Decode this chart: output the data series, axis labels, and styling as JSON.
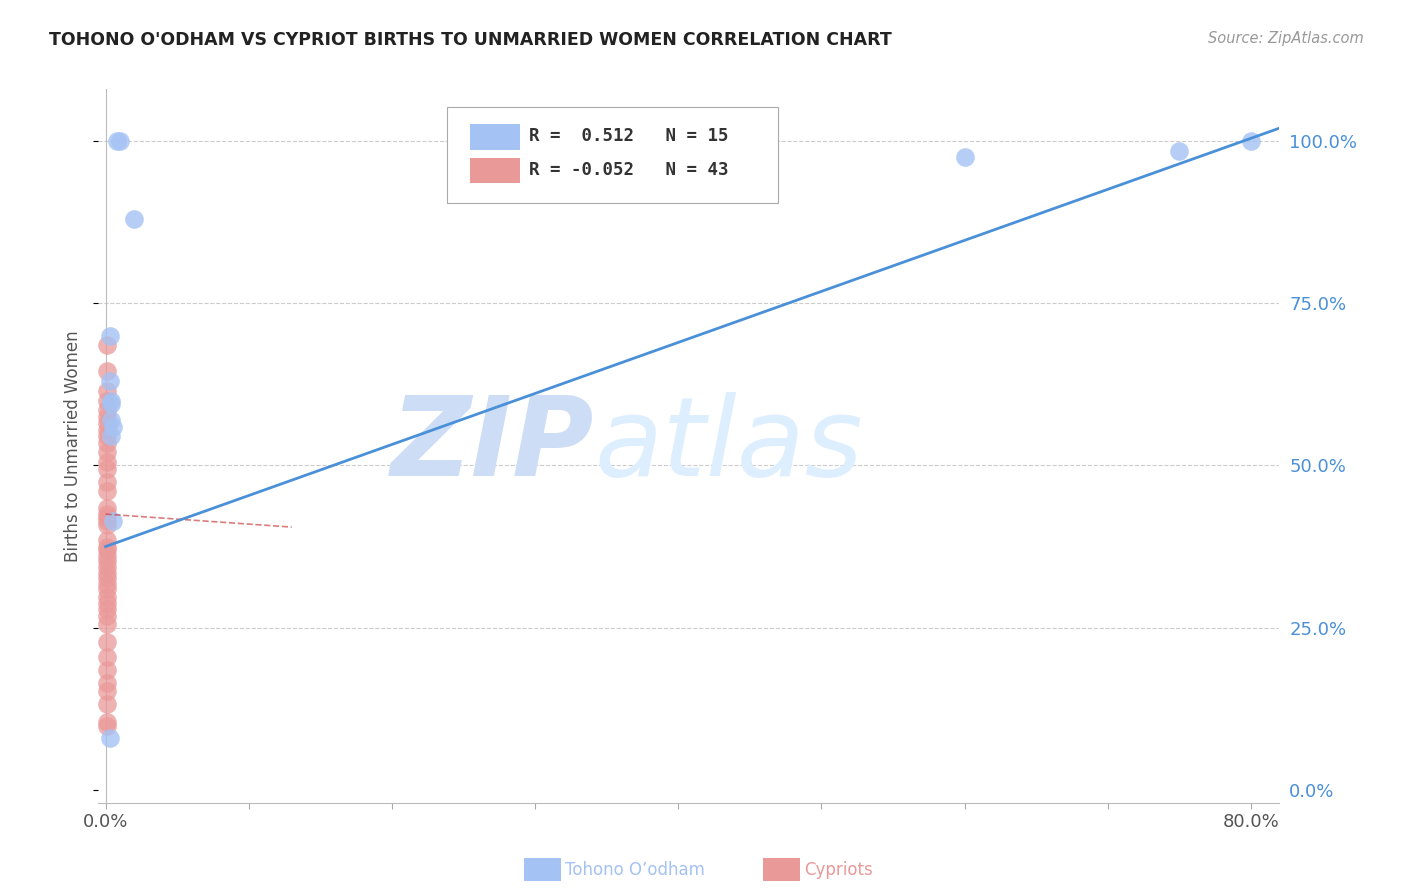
{
  "title": "TOHONO O'ODHAM VS CYPRIOT BIRTHS TO UNMARRIED WOMEN CORRELATION CHART",
  "source": "Source: ZipAtlas.com",
  "ylabel": "Births to Unmarried Women",
  "legend_blue_label": "Tohono O’odham",
  "legend_pink_label": "Cypriots",
  "legend_R_blue": "R =  0.512",
  "legend_N_blue": "N = 15",
  "legend_R_pink": "R = -0.052",
  "legend_N_pink": "N = 43",
  "blue_color": "#a4c2f4",
  "pink_color": "#ea9999",
  "trend_blue_color": "#4a90d9",
  "trend_pink_color": "#cc4444",
  "watermark_zip": "ZIP",
  "watermark_atlas": "atlas",
  "watermark_color": "#ddeeff",
  "background_color": "#ffffff",
  "blue_scatter_x": [
    0.008,
    0.01,
    0.02,
    0.003,
    0.003,
    0.004,
    0.004,
    0.004,
    0.005,
    0.004,
    0.005,
    0.003,
    0.6,
    0.75,
    0.8
  ],
  "blue_scatter_y": [
    1.0,
    1.0,
    0.88,
    0.7,
    0.63,
    0.6,
    0.595,
    0.57,
    0.56,
    0.545,
    0.415,
    0.08,
    0.975,
    0.985,
    1.0
  ],
  "pink_scatter_x": [
    0.001,
    0.001,
    0.001,
    0.001,
    0.001,
    0.001,
    0.001,
    0.001,
    0.001,
    0.001,
    0.001,
    0.001,
    0.001,
    0.001,
    0.001,
    0.001,
    0.001,
    0.001,
    0.001,
    0.001,
    0.001,
    0.001,
    0.001,
    0.001,
    0.001,
    0.001,
    0.001,
    0.001,
    0.001,
    0.001,
    0.001,
    0.001,
    0.001,
    0.001,
    0.001,
    0.001,
    0.001,
    0.001,
    0.001,
    0.001,
    0.001,
    0.001,
    0.001
  ],
  "pink_scatter_y": [
    0.685,
    0.645,
    0.615,
    0.6,
    0.585,
    0.575,
    0.565,
    0.555,
    0.545,
    0.535,
    0.52,
    0.505,
    0.495,
    0.475,
    0.46,
    0.435,
    0.425,
    0.42,
    0.415,
    0.408,
    0.385,
    0.375,
    0.37,
    0.36,
    0.352,
    0.343,
    0.334,
    0.326,
    0.318,
    0.31,
    0.298,
    0.288,
    0.278,
    0.268,
    0.255,
    0.228,
    0.205,
    0.185,
    0.165,
    0.152,
    0.132,
    0.105,
    0.098
  ],
  "blue_trend_x": [
    0.0,
    0.82
  ],
  "blue_trend_y": [
    0.375,
    1.02
  ],
  "pink_trend_x": [
    0.0,
    0.13
  ],
  "pink_trend_y": [
    0.425,
    0.405
  ],
  "xlim": [
    -0.005,
    0.82
  ],
  "ylim": [
    -0.02,
    1.08
  ],
  "yticks": [
    0.0,
    0.25,
    0.5,
    0.75,
    1.0
  ],
  "xticks": [
    0.0,
    0.1,
    0.2,
    0.3,
    0.4,
    0.5,
    0.6,
    0.7,
    0.8
  ],
  "right_tick_labels": [
    "0.0%",
    "25.0%",
    "50.0%",
    "75.0%",
    "100.0%"
  ],
  "right_tick_colors": [
    "#4a90d9",
    "#4a90d9",
    "#4a90d9",
    "#4a90d9",
    "#4a90d9"
  ]
}
